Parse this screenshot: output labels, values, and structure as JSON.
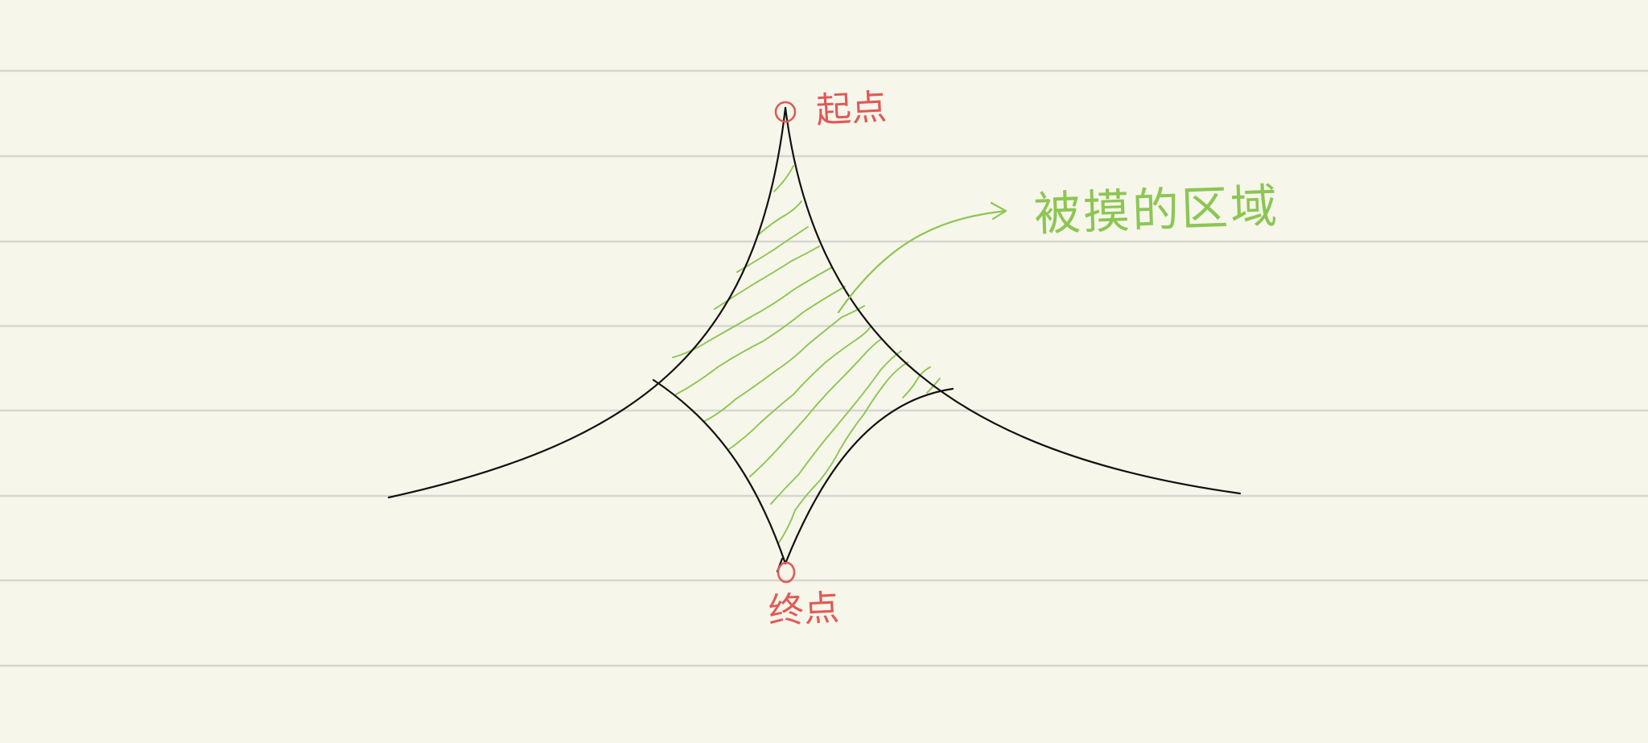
{
  "labels": {
    "start": "起点",
    "end": "终点",
    "region": "被摸的区域"
  },
  "colors": {
    "paper": "#f7f6ea",
    "ruled_line": "#d6d6d3",
    "curve": "#111111",
    "hatch": "#8cc654",
    "marker": "#e05a57"
  }
}
